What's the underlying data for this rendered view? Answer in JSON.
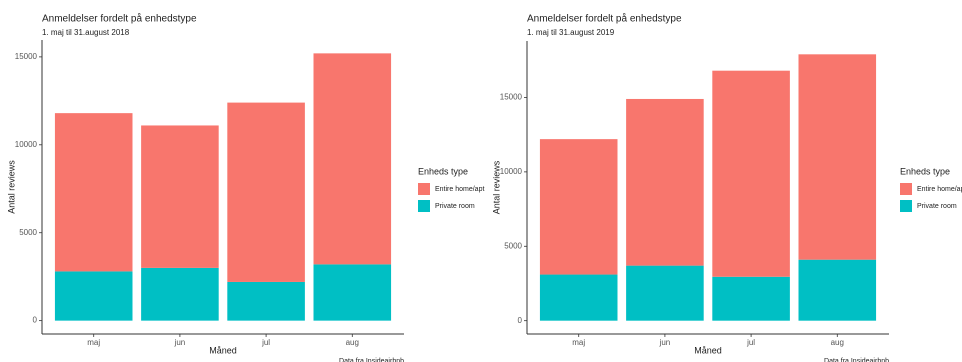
{
  "chart_data": [
    {
      "type": "bar",
      "stacked": true,
      "title": "Anmeldelser fordelt på enhedstype",
      "subtitle": "1. maj til 31.august 2018",
      "xlabel": "Måned",
      "ylabel": "Antal reviews",
      "legend_title": "Enheds type",
      "caption": "Data fra Insideairbnb",
      "categories": [
        "maj",
        "jun",
        "jul",
        "aug"
      ],
      "series": [
        {
          "name": "Entire home/apt",
          "color": "#f8766d",
          "values": [
            9000,
            8100,
            10200,
            12000
          ]
        },
        {
          "name": "Private room",
          "color": "#00bfc4",
          "values": [
            2800,
            3000,
            2200,
            3200
          ]
        }
      ],
      "ylim": [
        -760,
        15960
      ],
      "yticks": [
        0,
        5000,
        10000,
        15000
      ]
    },
    {
      "type": "bar",
      "stacked": true,
      "title": "Anmeldelser fordelt på enhedstype",
      "subtitle": "1. maj til 31.august 2019",
      "xlabel": "Måned",
      "ylabel": "Antal reviews",
      "legend_title": "Enheds type",
      "caption": "Data fra Insideairbnb",
      "categories": [
        "maj",
        "jun",
        "jul",
        "aug"
      ],
      "series": [
        {
          "name": "Entire home/apt",
          "color": "#f8766d",
          "values": [
            9100,
            11200,
            13850,
            13800
          ]
        },
        {
          "name": "Private room",
          "color": "#00bfc4",
          "values": [
            3100,
            3700,
            2950,
            4100
          ]
        }
      ],
      "ylim": [
        -895,
        18795
      ],
      "yticks": [
        0,
        5000,
        10000,
        15000
      ]
    }
  ]
}
